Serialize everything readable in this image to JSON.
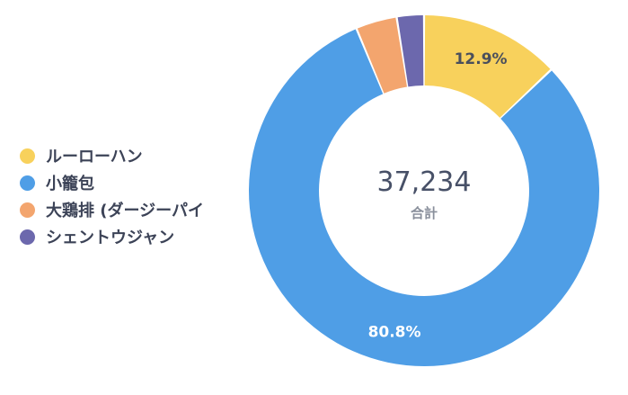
{
  "chart_data": {
    "type": "pie",
    "total": "37,234",
    "total_label": "合計",
    "categories": [
      "ルーローハン",
      "小籠包",
      "大鶏排 (ダージーパイ",
      "シェントウジャン"
    ],
    "values": [
      12.9,
      80.8,
      3.8,
      2.5
    ],
    "data_labels": [
      "12.9%",
      "80.8%",
      "",
      ""
    ],
    "colors": [
      "#f8d15c",
      "#4f9ee6",
      "#f3a56e",
      "#6c68ad"
    ],
    "label_colors": [
      "#4a4f5c",
      "#ffffff",
      "",
      ""
    ],
    "legend": "left"
  }
}
